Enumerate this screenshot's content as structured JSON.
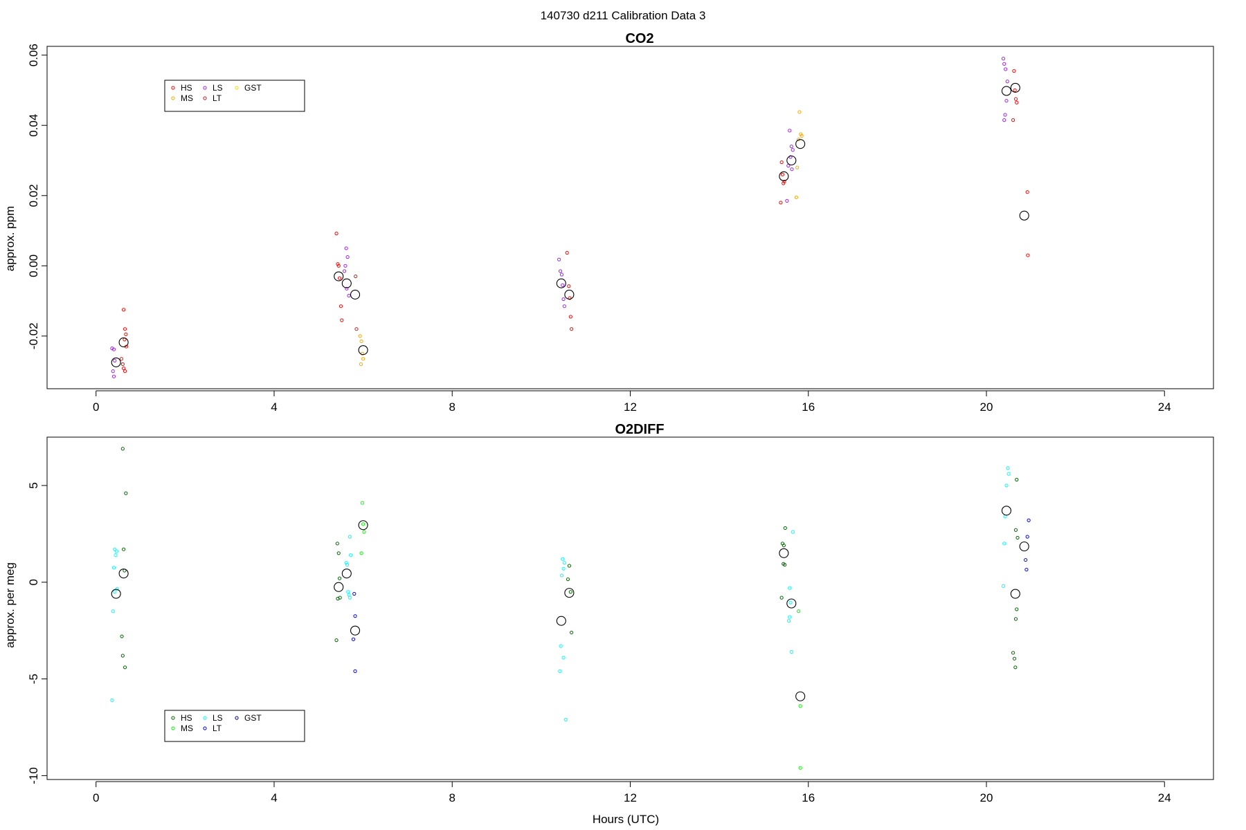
{
  "figure": {
    "title": "140730   d211   Calibration Data 3",
    "xlabel": "Hours (UTC)"
  },
  "chart_data": [
    {
      "type": "scatter",
      "title": "CO2",
      "ylabel": "approx. ppm",
      "xlim": [
        -1.1,
        25.1
      ],
      "ylim": [
        -0.035,
        0.0625
      ],
      "xticks": [
        0,
        4,
        8,
        12,
        16,
        20,
        24
      ],
      "xtick_labels": [
        "0",
        "4",
        "8",
        "12",
        "16",
        "20",
        "24"
      ],
      "yticks": [
        -0.02,
        0,
        0.02,
        0.04,
        0.06
      ],
      "ytick_labels": [
        "-0.02",
        "0.00",
        "0.02",
        "0.04",
        "0.06"
      ],
      "grid": false,
      "legend_position": "top-left",
      "legend": [
        {
          "label": "HS",
          "color": "#ff0000"
        },
        {
          "label": "MS",
          "color": "#ffa500"
        },
        {
          "label": "LS",
          "color": "#a020f0"
        },
        {
          "label": "LT",
          "color": "#b22222"
        },
        {
          "label": "GST",
          "color": "#ffd700"
        }
      ],
      "series": [
        {
          "name": "HS",
          "color": "#ff0000",
          "points": [
            [
              0.62,
              -0.0125
            ],
            [
              0.65,
              -0.018
            ],
            [
              0.67,
              -0.0195
            ],
            [
              0.64,
              -0.021
            ],
            [
              0.68,
              -0.023
            ],
            [
              0.57,
              -0.0265
            ],
            [
              0.6,
              -0.028
            ],
            [
              0.62,
              -0.0292
            ],
            [
              0.65,
              -0.03
            ],
            [
              5.4,
              0.0092
            ],
            [
              5.43,
              0.0005
            ],
            [
              5.45,
              0.0
            ],
            [
              5.47,
              -0.0035
            ],
            [
              5.5,
              -0.0115
            ],
            [
              5.52,
              -0.0155
            ],
            [
              10.58,
              0.0037
            ],
            [
              10.62,
              -0.0058
            ],
            [
              10.64,
              -0.0092
            ],
            [
              10.66,
              -0.0145
            ],
            [
              10.68,
              -0.018
            ],
            [
              15.4,
              0.0295
            ],
            [
              15.42,
              0.026
            ],
            [
              15.44,
              0.0235
            ],
            [
              15.46,
              0.024
            ],
            [
              15.38,
              0.018
            ],
            [
              20.62,
              0.0555
            ],
            [
              20.64,
              0.05
            ],
            [
              20.66,
              0.0475
            ],
            [
              20.68,
              0.0465
            ],
            [
              20.6,
              0.0415
            ],
            [
              20.92,
              0.021
            ],
            [
              20.93,
              0.003
            ]
          ]
        },
        {
          "name": "MS",
          "color": "#ffa500",
          "points": [
            [
              5.93,
              -0.02
            ],
            [
              5.96,
              -0.0215
            ],
            [
              5.98,
              -0.025
            ],
            [
              6.0,
              -0.0265
            ],
            [
              5.95,
              -0.028
            ],
            [
              15.8,
              0.0438
            ],
            [
              15.83,
              0.0375
            ],
            [
              15.85,
              0.037
            ],
            [
              15.78,
              0.036
            ],
            [
              15.75,
              0.028
            ],
            [
              15.73,
              0.0195
            ]
          ]
        },
        {
          "name": "LS",
          "color": "#a020f0",
          "points": [
            [
              0.36,
              -0.0235
            ],
            [
              0.4,
              -0.0238
            ],
            [
              0.42,
              -0.027
            ],
            [
              0.38,
              -0.03
            ],
            [
              0.4,
              -0.0315
            ],
            [
              5.62,
              0.005
            ],
            [
              5.65,
              0.0025
            ],
            [
              5.6,
              0.0
            ],
            [
              5.58,
              -0.0015
            ],
            [
              5.63,
              -0.0065
            ],
            [
              5.68,
              -0.0085
            ],
            [
              10.4,
              0.0018
            ],
            [
              10.43,
              -0.0015
            ],
            [
              10.46,
              -0.0025
            ],
            [
              10.48,
              -0.0055
            ],
            [
              10.5,
              -0.0095
            ],
            [
              10.52,
              -0.0115
            ],
            [
              15.58,
              0.0385
            ],
            [
              15.62,
              0.034
            ],
            [
              15.65,
              0.033
            ],
            [
              15.6,
              0.031
            ],
            [
              15.55,
              0.0285
            ],
            [
              15.63,
              0.0275
            ],
            [
              15.52,
              0.0185
            ],
            [
              20.38,
              0.059
            ],
            [
              20.4,
              0.0575
            ],
            [
              20.43,
              0.056
            ],
            [
              20.47,
              0.0525
            ],
            [
              20.45,
              0.047
            ],
            [
              20.42,
              0.043
            ],
            [
              20.4,
              0.0415
            ]
          ]
        },
        {
          "name": "LT",
          "color": "#b22222",
          "points": [
            [
              5.83,
              -0.003
            ],
            [
              5.85,
              -0.018
            ]
          ]
        },
        {
          "name": "GST",
          "color": "#ffd700",
          "points": []
        }
      ],
      "means": [
        [
          0.45,
          -0.0275
        ],
        [
          0.62,
          -0.0218
        ],
        [
          5.45,
          -0.003
        ],
        [
          5.63,
          -0.005
        ],
        [
          5.82,
          -0.0082
        ],
        [
          6.0,
          -0.024
        ],
        [
          10.45,
          -0.005
        ],
        [
          10.63,
          -0.0082
        ],
        [
          15.45,
          0.0255
        ],
        [
          15.62,
          0.03
        ],
        [
          15.82,
          0.0347
        ],
        [
          20.45,
          0.0498
        ],
        [
          20.65,
          0.0507
        ],
        [
          20.85,
          0.0143
        ]
      ]
    },
    {
      "type": "scatter",
      "title": "O2DIFF",
      "ylabel": "approx. per meg",
      "xlim": [
        -1.1,
        25.1
      ],
      "ylim": [
        -10.2,
        7.5
      ],
      "xticks": [
        0,
        4,
        8,
        12,
        16,
        20,
        24
      ],
      "xtick_labels": [
        "0",
        "4",
        "8",
        "12",
        "16",
        "20",
        "24"
      ],
      "yticks": [
        -10,
        -5,
        0,
        5
      ],
      "ytick_labels": [
        "-10",
        "-5",
        "0",
        "5"
      ],
      "grid": false,
      "legend_position": "bottom-left",
      "legend": [
        {
          "label": "HS",
          "color": "#006400"
        },
        {
          "label": "MS",
          "color": "#00ff00"
        },
        {
          "label": "LS",
          "color": "#00ffff"
        },
        {
          "label": "LT",
          "color": "#0000ff"
        },
        {
          "label": "GST",
          "color": "#00008b"
        }
      ],
      "series": [
        {
          "name": "HS",
          "color": "#006400",
          "points": [
            [
              0.6,
              6.9
            ],
            [
              0.67,
              4.6
            ],
            [
              0.62,
              1.7
            ],
            [
              0.64,
              0.6
            ],
            [
              0.58,
              -2.8
            ],
            [
              0.6,
              -3.8
            ],
            [
              0.65,
              -4.4
            ],
            [
              5.42,
              2.0
            ],
            [
              5.45,
              1.5
            ],
            [
              5.47,
              0.2
            ],
            [
              5.43,
              -0.85
            ],
            [
              5.48,
              -0.8
            ],
            [
              5.4,
              -3.0
            ],
            [
              10.63,
              0.85
            ],
            [
              10.6,
              0.15
            ],
            [
              10.66,
              -0.5
            ],
            [
              10.68,
              -2.6
            ],
            [
              15.42,
              2.0
            ],
            [
              15.45,
              1.9
            ],
            [
              15.48,
              2.8
            ],
            [
              15.44,
              0.95
            ],
            [
              15.47,
              0.9
            ],
            [
              15.4,
              -0.8
            ],
            [
              20.68,
              5.3
            ],
            [
              20.66,
              2.7
            ],
            [
              20.7,
              2.3
            ],
            [
              20.68,
              -1.4
            ],
            [
              20.66,
              -1.9
            ],
            [
              20.6,
              -3.65
            ],
            [
              20.63,
              -3.95
            ],
            [
              20.65,
              -4.4
            ]
          ]
        },
        {
          "name": "MS",
          "color": "#00ff00",
          "points": [
            [
              5.98,
              4.1
            ],
            [
              6.0,
              3.0
            ],
            [
              6.02,
              2.6
            ],
            [
              5.96,
              1.5
            ],
            [
              15.78,
              -1.5
            ],
            [
              15.82,
              -6.4
            ],
            [
              15.82,
              -9.6
            ]
          ]
        },
        {
          "name": "LS",
          "color": "#00ffff",
          "points": [
            [
              0.42,
              1.7
            ],
            [
              0.46,
              1.6
            ],
            [
              0.44,
              1.4
            ],
            [
              0.4,
              0.75
            ],
            [
              0.47,
              -0.35
            ],
            [
              0.42,
              -0.5
            ],
            [
              0.38,
              -1.5
            ],
            [
              0.36,
              -6.1
            ],
            [
              5.7,
              2.35
            ],
            [
              5.62,
              1.0
            ],
            [
              5.64,
              0.9
            ],
            [
              5.72,
              1.4
            ],
            [
              5.66,
              -0.5
            ],
            [
              5.68,
              -0.65
            ],
            [
              5.7,
              -0.8
            ],
            [
              10.48,
              1.2
            ],
            [
              10.52,
              1.0
            ],
            [
              10.5,
              0.7
            ],
            [
              10.46,
              0.35
            ],
            [
              10.44,
              -3.3
            ],
            [
              10.5,
              -3.9
            ],
            [
              10.42,
              -4.6
            ],
            [
              10.55,
              -7.1
            ],
            [
              15.65,
              2.6
            ],
            [
              15.58,
              -0.3
            ],
            [
              15.6,
              -1.05
            ],
            [
              15.58,
              -1.8
            ],
            [
              15.56,
              -2.0
            ],
            [
              15.62,
              -3.6
            ],
            [
              20.48,
              5.9
            ],
            [
              20.5,
              5.6
            ],
            [
              20.45,
              5.0
            ],
            [
              20.42,
              3.4
            ],
            [
              20.4,
              2.0
            ],
            [
              20.38,
              -0.2
            ]
          ]
        },
        {
          "name": "LT",
          "color": "#0000ff",
          "points": [
            [
              5.8,
              -0.6
            ],
            [
              5.82,
              -1.75
            ],
            [
              5.78,
              -2.95
            ],
            [
              5.82,
              -4.6
            ],
            [
              20.95,
              3.2
            ],
            [
              20.92,
              2.35
            ],
            [
              20.88,
              1.15
            ],
            [
              20.9,
              0.65
            ]
          ]
        },
        {
          "name": "GST",
          "color": "#00008b",
          "points": []
        }
      ],
      "means": [
        [
          0.45,
          -0.6
        ],
        [
          0.62,
          0.45
        ],
        [
          5.45,
          -0.25
        ],
        [
          5.63,
          0.45
        ],
        [
          5.82,
          -2.5
        ],
        [
          6.0,
          2.95
        ],
        [
          10.45,
          -2.0
        ],
        [
          10.63,
          -0.55
        ],
        [
          15.45,
          1.5
        ],
        [
          15.62,
          -1.1
        ],
        [
          15.82,
          -5.9
        ],
        [
          20.45,
          3.7
        ],
        [
          20.65,
          -0.6
        ],
        [
          20.85,
          1.85
        ]
      ]
    }
  ]
}
